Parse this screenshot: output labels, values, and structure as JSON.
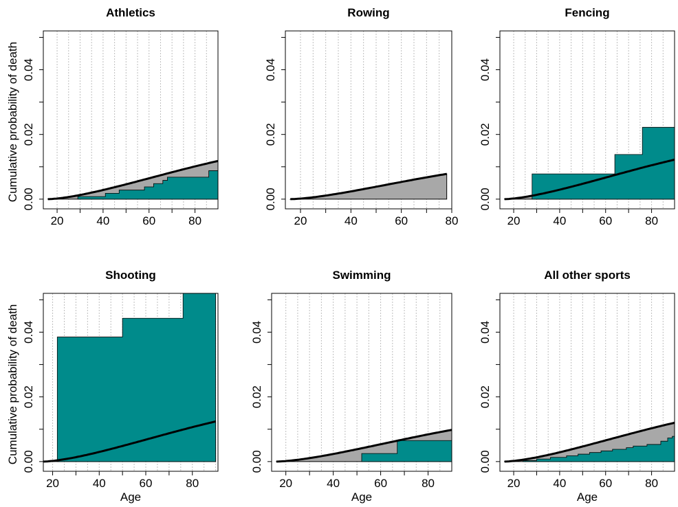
{
  "chart_data": [
    {
      "type": "area",
      "title": "Athletics",
      "xlabel": "",
      "ylabel": "Cumulative probability of death",
      "xlim": [
        14,
        90
      ],
      "ylim": [
        -0.003,
        0.052
      ],
      "xticks": [
        20,
        40,
        60,
        80
      ],
      "yticks": [
        0.0,
        0.02,
        0.04
      ],
      "ytick_labels": [
        "0.00",
        "0.02",
        "0.04"
      ],
      "grid_x": [
        20,
        25,
        30,
        35,
        40,
        45,
        50,
        55,
        60,
        65,
        70,
        75,
        80,
        85,
        90
      ],
      "expected_end": [
        90,
        0.0118
      ],
      "observed_steps": [
        [
          29,
          0.0008
        ],
        [
          41,
          0.0018
        ],
        [
          47,
          0.0028
        ],
        [
          58,
          0.0038
        ],
        [
          62,
          0.0048
        ],
        [
          66,
          0.0058
        ],
        [
          68,
          0.0068
        ],
        [
          86,
          0.0088
        ],
        [
          90,
          0.0088
        ]
      ]
    },
    {
      "type": "area",
      "title": "Rowing",
      "xlabel": "",
      "ylabel": "",
      "xlim": [
        14,
        80
      ],
      "ylim": [
        -0.003,
        0.052
      ],
      "xticks": [
        20,
        40,
        60,
        80
      ],
      "yticks": [
        0.0,
        0.02,
        0.04
      ],
      "ytick_labels": [
        "0.00",
        "0.02",
        "0.04"
      ],
      "grid_x": [
        20,
        25,
        30,
        35,
        40,
        45,
        50,
        55,
        60,
        65,
        70,
        75,
        80
      ],
      "expected_end": [
        78,
        0.0078
      ],
      "observed_steps": []
    },
    {
      "type": "area",
      "title": "Fencing",
      "xlabel": "",
      "ylabel": "",
      "xlim": [
        14,
        90
      ],
      "ylim": [
        -0.003,
        0.052
      ],
      "xticks": [
        20,
        40,
        60,
        80
      ],
      "yticks": [
        0.0,
        0.02,
        0.04
      ],
      "ytick_labels": [
        "0.00",
        "0.02",
        "0.04"
      ],
      "grid_x": [
        20,
        25,
        30,
        35,
        40,
        45,
        50,
        55,
        60,
        65,
        70,
        75,
        80,
        85,
        90
      ],
      "expected_end": [
        90,
        0.0122
      ],
      "observed_steps": [
        [
          28,
          0.0078
        ],
        [
          64,
          0.0138
        ],
        [
          76,
          0.0222
        ],
        [
          90,
          0.0222
        ]
      ]
    },
    {
      "type": "area",
      "title": "Shooting",
      "xlabel": "Age",
      "ylabel": "Cumulative probability of death",
      "xlim": [
        16,
        91
      ],
      "ylim": [
        -0.003,
        0.052
      ],
      "xticks": [
        20,
        40,
        60,
        80
      ],
      "yticks": [
        0.0,
        0.02,
        0.04
      ],
      "ytick_labels": [
        "0.00",
        "0.02",
        "0.04"
      ],
      "grid_x": [
        20,
        25,
        30,
        35,
        40,
        45,
        50,
        55,
        60,
        65,
        70,
        75,
        80,
        85,
        90
      ],
      "expected_end": [
        90,
        0.0124
      ],
      "observed_steps": [
        [
          22,
          0.0385
        ],
        [
          50,
          0.0443
        ],
        [
          76,
          0.052
        ],
        [
          90,
          0.052
        ]
      ]
    },
    {
      "type": "area",
      "title": "Swimming",
      "xlabel": "Age",
      "ylabel": "",
      "xlim": [
        14,
        90
      ],
      "ylim": [
        -0.003,
        0.052
      ],
      "xticks": [
        20,
        40,
        60,
        80
      ],
      "yticks": [
        0.0,
        0.02,
        0.04
      ],
      "ytick_labels": [
        "0.00",
        "0.02",
        "0.04"
      ],
      "grid_x": [
        20,
        25,
        30,
        35,
        40,
        45,
        50,
        55,
        60,
        65,
        70,
        75,
        80,
        85,
        90
      ],
      "expected_end": [
        90,
        0.0098
      ],
      "observed_steps": [
        [
          52,
          0.0025
        ],
        [
          67,
          0.0065
        ],
        [
          90,
          0.0065
        ]
      ]
    },
    {
      "type": "area",
      "title": "All other sports",
      "xlabel": "Age",
      "ylabel": "",
      "xlim": [
        14,
        90
      ],
      "ylim": [
        -0.003,
        0.052
      ],
      "xticks": [
        20,
        40,
        60,
        80
      ],
      "yticks": [
        0.0,
        0.02,
        0.04
      ],
      "ytick_labels": [
        "0.00",
        "0.02",
        "0.04"
      ],
      "grid_x": [
        20,
        25,
        30,
        35,
        40,
        45,
        50,
        55,
        60,
        65,
        70,
        75,
        80,
        85,
        90
      ],
      "expected_end": [
        90,
        0.012
      ],
      "observed_steps": [
        [
          24,
          0.0003
        ],
        [
          30,
          0.0008
        ],
        [
          36,
          0.0013
        ],
        [
          43,
          0.0018
        ],
        [
          48,
          0.0023
        ],
        [
          53,
          0.0028
        ],
        [
          58,
          0.0033
        ],
        [
          63,
          0.0038
        ],
        [
          69,
          0.0043
        ],
        [
          72,
          0.0048
        ],
        [
          78,
          0.0053
        ],
        [
          84,
          0.0063
        ],
        [
          87,
          0.0073
        ],
        [
          89,
          0.0078
        ],
        [
          90,
          0.0078
        ]
      ]
    }
  ]
}
